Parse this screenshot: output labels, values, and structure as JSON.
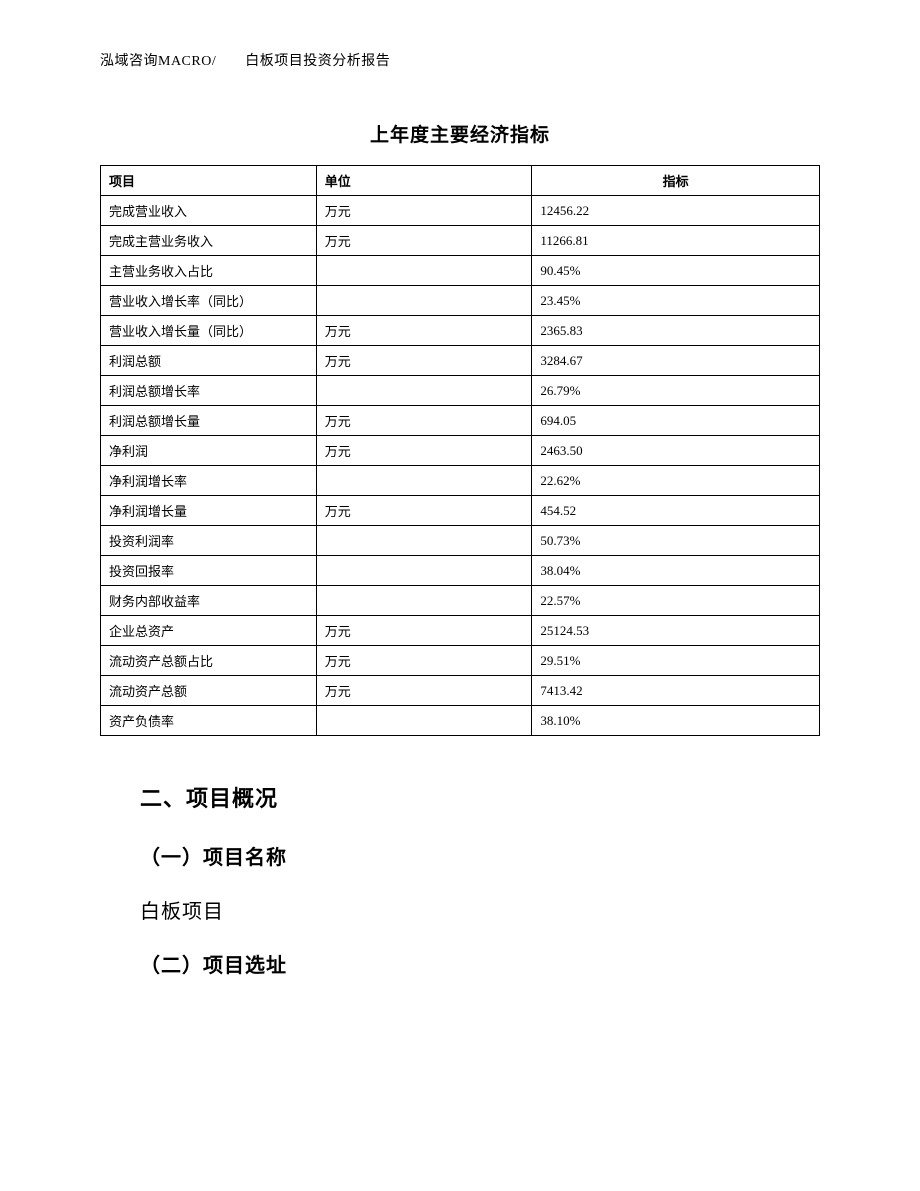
{
  "header": {
    "text": "泓域咨询MACRO/　　白板项目投资分析报告"
  },
  "table": {
    "title": "上年度主要经济指标",
    "columns": [
      "项目",
      "单位",
      "指标"
    ],
    "rows": [
      {
        "project": "完成营业收入",
        "unit": "万元",
        "indicator": "12456.22"
      },
      {
        "project": "完成主营业务收入",
        "unit": "万元",
        "indicator": "11266.81"
      },
      {
        "project": "主营业务收入占比",
        "unit": "",
        "indicator": "90.45%"
      },
      {
        "project": "营业收入增长率（同比）",
        "unit": "",
        "indicator": "23.45%"
      },
      {
        "project": "营业收入增长量（同比）",
        "unit": "万元",
        "indicator": "2365.83"
      },
      {
        "project": "利润总额",
        "unit": "万元",
        "indicator": "3284.67"
      },
      {
        "project": "利润总额增长率",
        "unit": "",
        "indicator": "26.79%"
      },
      {
        "project": "利润总额增长量",
        "unit": "万元",
        "indicator": "694.05"
      },
      {
        "project": "净利润",
        "unit": "万元",
        "indicator": "2463.50"
      },
      {
        "project": "净利润增长率",
        "unit": "",
        "indicator": "22.62%"
      },
      {
        "project": "净利润增长量",
        "unit": "万元",
        "indicator": "454.52"
      },
      {
        "project": "投资利润率",
        "unit": "",
        "indicator": "50.73%"
      },
      {
        "project": "投资回报率",
        "unit": "",
        "indicator": "38.04%"
      },
      {
        "project": "财务内部收益率",
        "unit": "",
        "indicator": "22.57%"
      },
      {
        "project": "企业总资产",
        "unit": "万元",
        "indicator": "25124.53"
      },
      {
        "project": "流动资产总额占比",
        "unit": "万元",
        "indicator": "29.51%"
      },
      {
        "project": "流动资产总额",
        "unit": "万元",
        "indicator": "7413.42"
      },
      {
        "project": "资产负债率",
        "unit": "",
        "indicator": "38.10%"
      }
    ]
  },
  "sections": {
    "heading2": "二、项目概况",
    "sub1": "（一）项目名称",
    "body1": "白板项目",
    "sub2": "（二）项目选址"
  }
}
